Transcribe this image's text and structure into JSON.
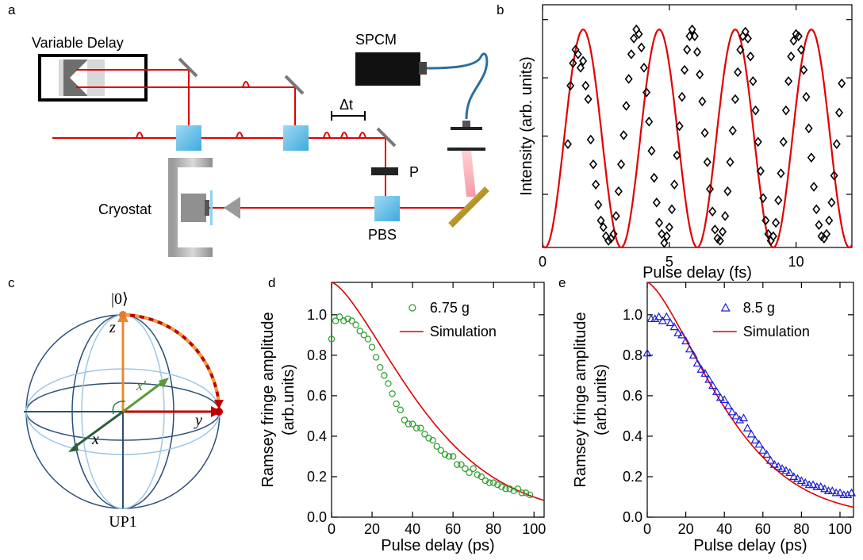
{
  "panel_labels": {
    "a": "a",
    "b": "b",
    "c": "c",
    "d": "d",
    "e": "e"
  },
  "setup": {
    "variable_delay": "Variable Delay",
    "spcm": "SPCM",
    "delta_t": "Δt",
    "p": "P",
    "cryostat": "Cryostat",
    "pbs": "PBS"
  },
  "bloch": {
    "ket0": "|0⟩",
    "z": "z",
    "y": "y",
    "x": "x",
    "xprime": "x′",
    "bottom_label": "UP1"
  },
  "chart_data": [
    {
      "id": "b",
      "type": "scatter",
      "xlabel": "Pulse delay (fs)",
      "ylabel": "Intensity (arb. units)",
      "xlim": [
        0,
        12.2
      ],
      "ylim": [
        0,
        1.08
      ],
      "xticks": [
        "0",
        "5",
        "10"
      ],
      "xtick_values": [
        0,
        5,
        10
      ],
      "show_y_tick_labels": false,
      "period_fs": 3.0,
      "fit_peak_fs": 1.6,
      "fit_color": "#e00000",
      "marker": "diamond",
      "series": [
        {
          "x": [
            1.0,
            1.1,
            1.2,
            1.3,
            1.4,
            1.5,
            1.6,
            1.7,
            1.8,
            1.9,
            2.0,
            2.1,
            2.2,
            2.3,
            2.4,
            2.5,
            2.6,
            2.7,
            2.8,
            2.9,
            3.0,
            3.1,
            3.2,
            3.3,
            3.4,
            3.5,
            3.6,
            3.7,
            3.8,
            3.9,
            4.0,
            4.1,
            4.2,
            4.3,
            4.4,
            4.5,
            4.6,
            4.7,
            4.8,
            4.9,
            5.0,
            5.1,
            5.2,
            5.3,
            5.4,
            5.5,
            5.6,
            5.7,
            5.8,
            5.9,
            6.0,
            6.1,
            6.2,
            6.3,
            6.4,
            6.5,
            6.6,
            6.7,
            6.8,
            6.9,
            7.0,
            7.1,
            7.2,
            7.3,
            7.4,
            7.5,
            7.6,
            7.7,
            7.8,
            7.9,
            8.0,
            8.1,
            8.2,
            8.3,
            8.4,
            8.5,
            8.6,
            8.7,
            8.8,
            8.9,
            9.0,
            9.1,
            9.2,
            9.3,
            9.4,
            9.5,
            9.6,
            9.7,
            9.8,
            9.9,
            10.0,
            10.1,
            10.2,
            10.3,
            10.4,
            10.5,
            10.6,
            10.7,
            10.8,
            10.9,
            11.0,
            11.1,
            11.2,
            11.3,
            11.4,
            11.5,
            11.6,
            11.7,
            11.8
          ],
          "y": [
            0.46,
            0.72,
            0.82,
            0.88,
            0.86,
            0.8,
            0.83,
            0.72,
            0.66,
            0.48,
            0.37,
            0.28,
            0.19,
            0.12,
            0.09,
            0.05,
            0.03,
            0.04,
            0.06,
            0.14,
            0.25,
            0.37,
            0.5,
            0.63,
            0.75,
            0.86,
            0.93,
            0.97,
            0.95,
            0.89,
            0.8,
            0.69,
            0.56,
            0.43,
            0.31,
            0.2,
            0.11,
            0.06,
            0.02,
            0.05,
            0.09,
            0.17,
            0.28,
            0.41,
            0.54,
            0.67,
            0.79,
            0.88,
            0.94,
            0.97,
            0.94,
            0.87,
            0.77,
            0.65,
            0.51,
            0.38,
            0.26,
            0.16,
            0.08,
            0.04,
            0.03,
            0.07,
            0.14,
            0.25,
            0.38,
            0.52,
            0.66,
            0.78,
            0.88,
            0.94,
            0.96,
            0.93,
            0.85,
            0.74,
            0.61,
            0.47,
            0.34,
            0.22,
            0.12,
            0.06,
            0.03,
            0.05,
            0.11,
            0.21,
            0.33,
            0.47,
            0.61,
            0.74,
            0.85,
            0.92,
            0.95,
            0.94,
            0.88,
            0.79,
            0.67,
            0.53,
            0.4,
            0.27,
            0.17,
            0.1,
            0.05,
            0.04,
            0.06,
            0.12,
            0.2,
            0.32,
            0.46,
            0.6,
            0.73
          ]
        }
      ]
    },
    {
      "id": "d",
      "type": "scatter",
      "xlabel": "Pulse delay (ps)",
      "ylabel": "Ramsey fringe amplitude\n(arb.units)",
      "ylabel_lines": [
        "Ramsey fringe amplitude",
        "(arb.units)"
      ],
      "xlim": [
        0,
        105
      ],
      "ylim": [
        0,
        1.16
      ],
      "xticks": [
        "0",
        "20",
        "40",
        "60",
        "80",
        "100"
      ],
      "xtick_values": [
        0,
        20,
        40,
        60,
        80,
        100
      ],
      "yticks": [
        "0.0",
        "0.2",
        "0.4",
        "0.6",
        "0.8",
        "1.0"
      ],
      "ytick_values": [
        0,
        0.2,
        0.4,
        0.6,
        0.8,
        1.0
      ],
      "marker": "circle",
      "marker_color": "#2a9d2a",
      "fit_color": "#e00000",
      "fit_tau_ps": 50,
      "fit_a0": 1.16,
      "legend": {
        "position": "top-right",
        "data_label": "6.75 g",
        "fit_label": "Simulation"
      },
      "series": [
        {
          "name": "6.75 g",
          "x": [
            0,
            2,
            4,
            6,
            8,
            10,
            12,
            14,
            16,
            18,
            20,
            22,
            24,
            26,
            28,
            30,
            32,
            34,
            36,
            38,
            40,
            42,
            44,
            46,
            48,
            50,
            52,
            54,
            56,
            58,
            60,
            62,
            64,
            66,
            68,
            70,
            72,
            74,
            76,
            78,
            80,
            82,
            84,
            86,
            88,
            90,
            92,
            94,
            96,
            98
          ],
          "y": [
            0.88,
            0.97,
            0.99,
            0.97,
            0.98,
            0.97,
            0.95,
            0.92,
            0.9,
            0.88,
            0.84,
            0.79,
            0.74,
            0.7,
            0.66,
            0.61,
            0.56,
            0.53,
            0.48,
            0.46,
            0.46,
            0.44,
            0.44,
            0.41,
            0.39,
            0.38,
            0.35,
            0.33,
            0.31,
            0.3,
            0.3,
            0.26,
            0.26,
            0.24,
            0.22,
            0.24,
            0.21,
            0.2,
            0.18,
            0.17,
            0.17,
            0.16,
            0.15,
            0.14,
            0.14,
            0.13,
            0.14,
            0.12,
            0.12,
            0.11
          ]
        }
      ]
    },
    {
      "id": "e",
      "type": "scatter",
      "xlabel": "Pulse delay (ps)",
      "ylabel": "Ramsey fringe amplitude\n(arb.units)",
      "ylabel_lines": [
        "Ramsey fringe amplitude",
        "(arb.units)"
      ],
      "xlim": [
        0,
        107
      ],
      "ylim": [
        0,
        1.16
      ],
      "xticks": [
        "0",
        "20",
        "40",
        "60",
        "80",
        "100"
      ],
      "xtick_values": [
        0,
        20,
        40,
        60,
        80,
        100
      ],
      "yticks": [
        "0.0",
        "0.2",
        "0.4",
        "0.6",
        "0.8",
        "1.0"
      ],
      "ytick_values": [
        0,
        0.2,
        0.4,
        0.6,
        0.8,
        1.0
      ],
      "marker": "triangle",
      "marker_color": "#1a1ad8",
      "fit_color": "#e00000",
      "fit_tau_ps": 45,
      "fit_a0": 1.16,
      "legend": {
        "position": "top-right",
        "data_label": "8.5 g",
        "fit_label": "Simulation"
      },
      "series": [
        {
          "name": "8.5 g",
          "x": [
            0,
            2,
            4,
            6,
            8,
            10,
            12,
            14,
            16,
            18,
            20,
            22,
            24,
            26,
            28,
            30,
            32,
            34,
            36,
            38,
            40,
            42,
            44,
            46,
            48,
            50,
            52,
            54,
            56,
            58,
            60,
            62,
            64,
            66,
            68,
            70,
            72,
            74,
            76,
            78,
            80,
            82,
            84,
            86,
            88,
            90,
            92,
            94,
            96,
            98,
            100,
            102,
            104,
            106
          ],
          "y": [
            0.81,
            0.98,
            0.98,
            0.99,
            0.97,
            0.99,
            0.96,
            0.94,
            0.91,
            0.9,
            0.87,
            0.83,
            0.8,
            0.76,
            0.73,
            0.71,
            0.68,
            0.65,
            0.62,
            0.59,
            0.58,
            0.55,
            0.52,
            0.5,
            0.48,
            0.49,
            0.44,
            0.41,
            0.38,
            0.36,
            0.33,
            0.31,
            0.28,
            0.26,
            0.25,
            0.24,
            0.23,
            0.22,
            0.2,
            0.19,
            0.18,
            0.17,
            0.16,
            0.16,
            0.15,
            0.15,
            0.14,
            0.13,
            0.13,
            0.12,
            0.12,
            0.11,
            0.11,
            0.12
          ]
        }
      ]
    }
  ]
}
